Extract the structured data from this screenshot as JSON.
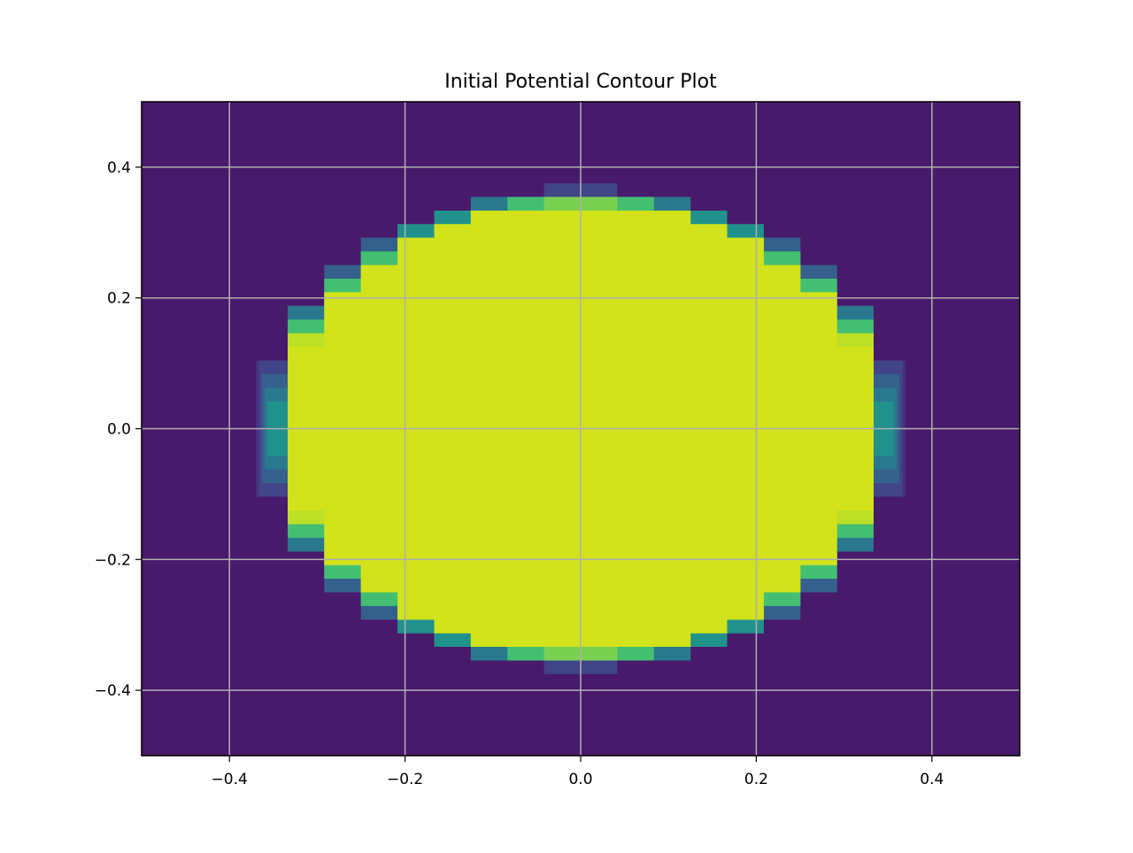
{
  "chart_data": {
    "type": "contour",
    "title": "Initial Potential Contour Plot",
    "xlabel": "",
    "ylabel": "",
    "xlim": [
      -0.5,
      0.5
    ],
    "ylim": [
      -0.5,
      0.5
    ],
    "grid": true,
    "x_ticks": [
      -0.4,
      -0.2,
      0.0,
      0.2,
      0.4
    ],
    "y_ticks": [
      -0.4,
      -0.2,
      0.0,
      0.2,
      0.4
    ],
    "x_tick_labels": [
      "−0.4",
      "−0.2",
      "0.0",
      "0.2",
      "0.4"
    ],
    "y_tick_labels": [
      "−0.4",
      "−0.2",
      "0.0",
      "0.2",
      "0.4"
    ],
    "colormap": "viridis",
    "background_color": "#481a6c",
    "levels": [
      {
        "level": 1,
        "color": "#472f7d"
      },
      {
        "level": 2,
        "color": "#414487"
      },
      {
        "level": 3,
        "color": "#35608d"
      },
      {
        "level": 4,
        "color": "#2a788e"
      },
      {
        "level": 5,
        "color": "#21918c"
      },
      {
        "level": 6,
        "color": "#22a884"
      },
      {
        "level": 7,
        "color": "#43bf71"
      },
      {
        "level": 8,
        "color": "#7ad151"
      },
      {
        "level": 9,
        "color": "#bddf26"
      },
      {
        "level": 10,
        "color": "#d2e21b"
      }
    ],
    "region": {
      "outer_radius": 0.37,
      "inner_radius": 0.34,
      "inner_value": 1.0,
      "outer_value": 0.0,
      "grid_step": 0.0417
    }
  }
}
